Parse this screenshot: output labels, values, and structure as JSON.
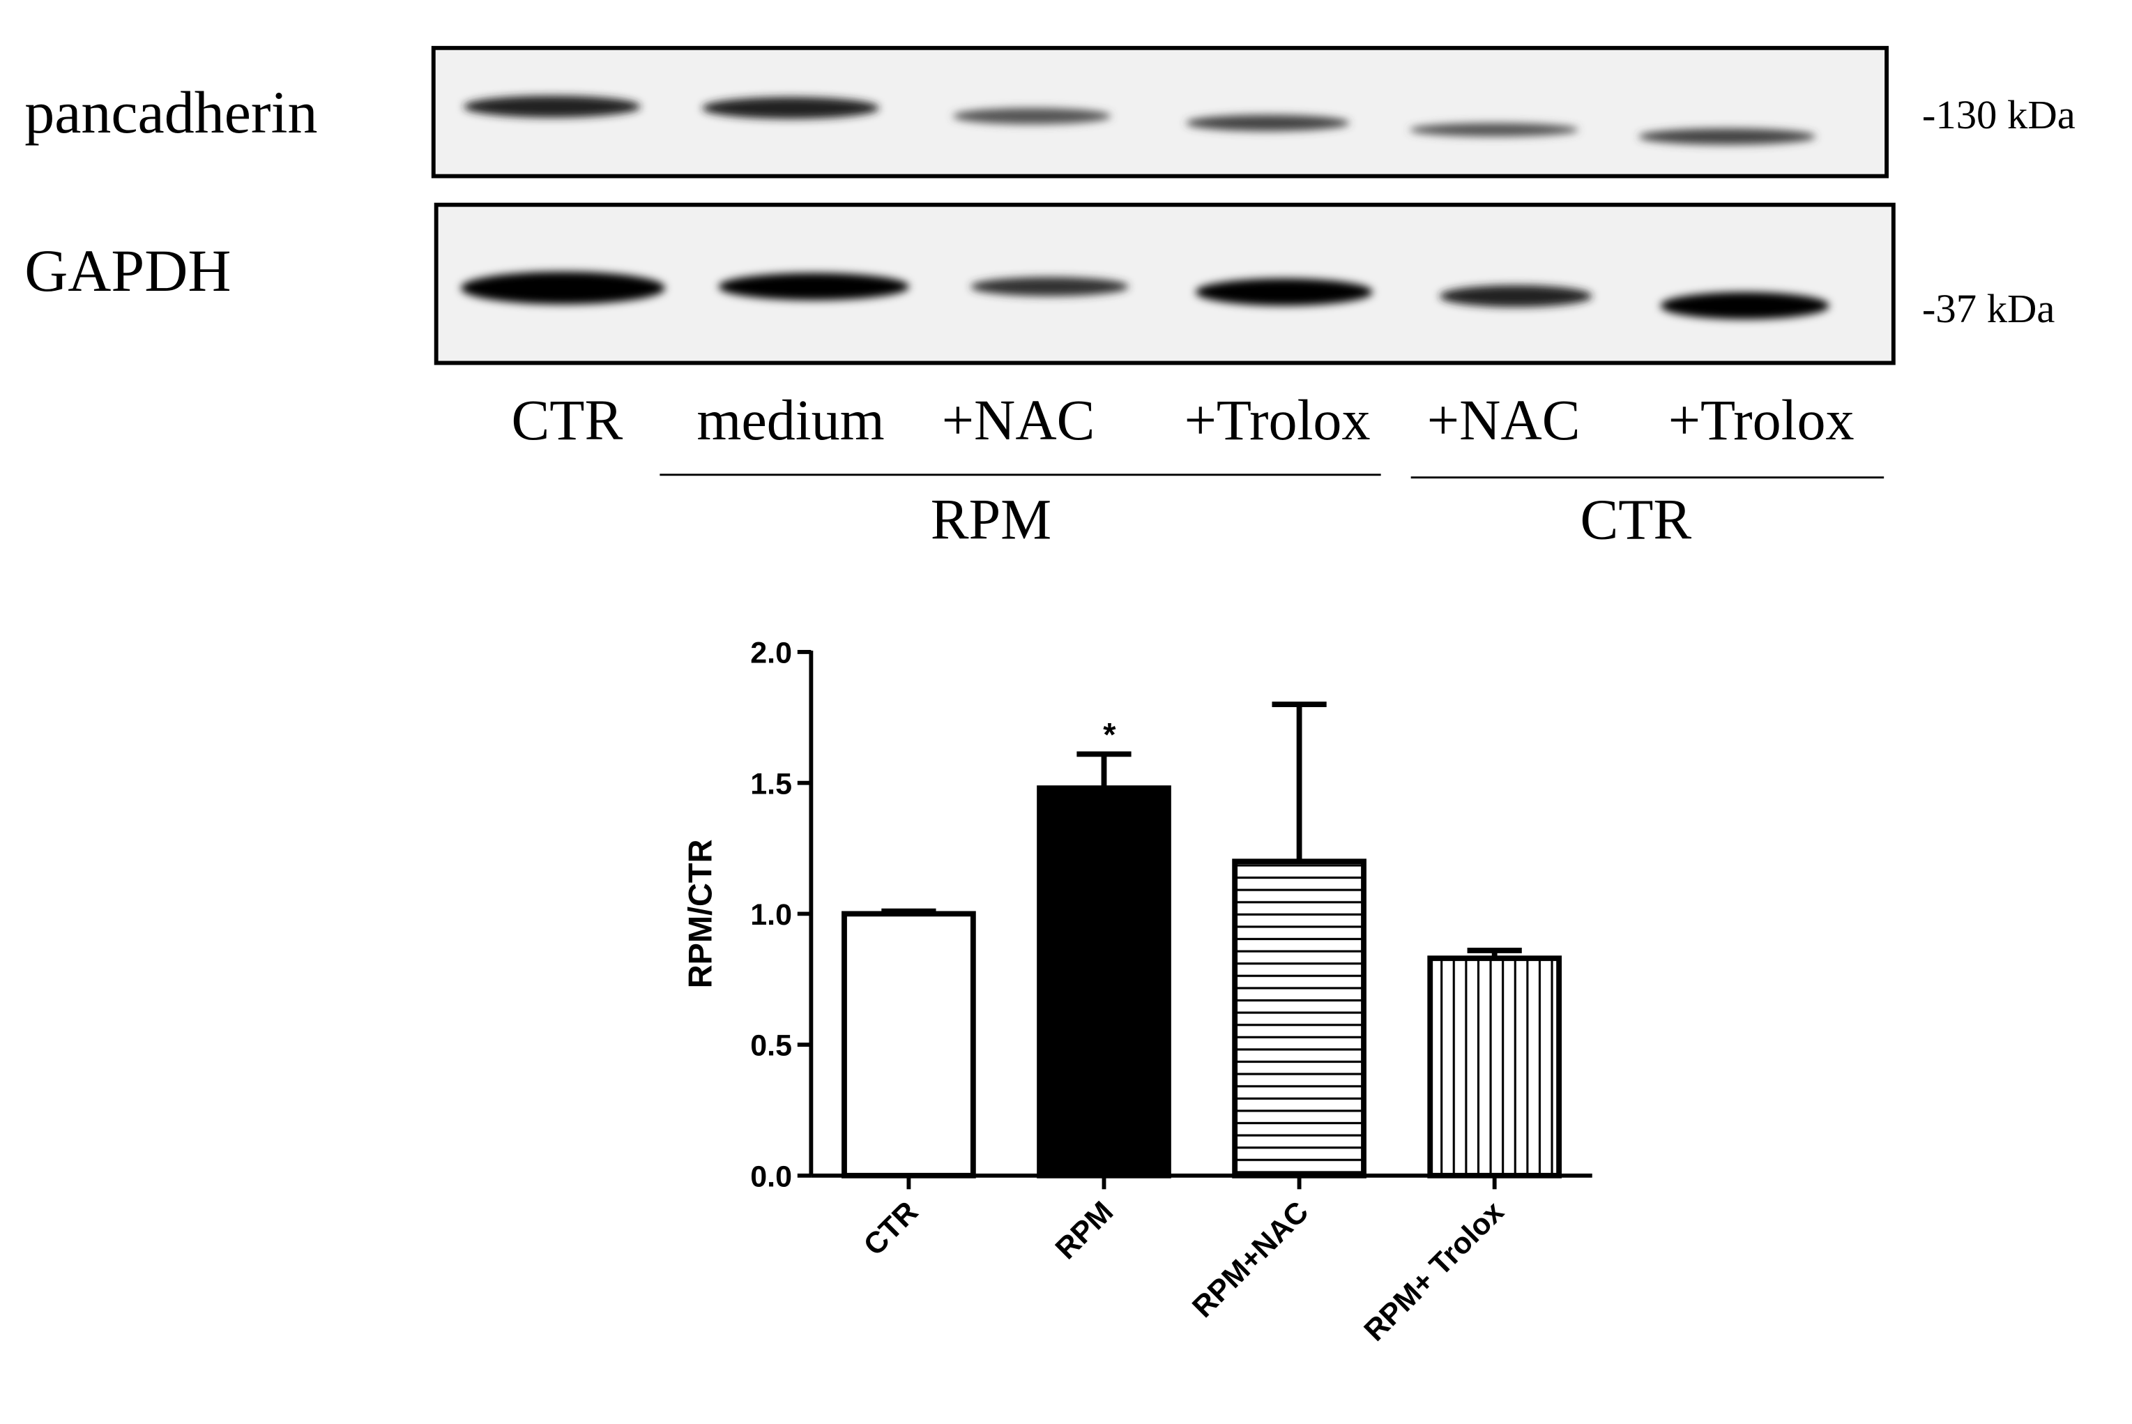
{
  "blot": {
    "rows": [
      {
        "label": "pancadherin",
        "size": "-130 kDa"
      },
      {
        "label": "GAPDH",
        "size": "-37 kDa"
      }
    ],
    "lanes": [
      "CTR",
      "medium",
      "+NAC",
      "+Trolox",
      "+NAC",
      "+Trolox"
    ],
    "groups": [
      "RPM",
      "CTR"
    ]
  },
  "chart_data": {
    "type": "bar",
    "y_label": "RPM/CTR",
    "categories": [
      "CTR",
      "RPM",
      "RPM+NAC",
      "RPM+ Trolox"
    ],
    "values": [
      1.0,
      1.48,
      1.2,
      0.83
    ],
    "errors": [
      0.01,
      0.13,
      0.6,
      0.03
    ],
    "significance": [
      null,
      "*",
      null,
      null
    ],
    "fills": [
      "white",
      "solid",
      "horizontal",
      "vertical"
    ],
    "color": "#000000",
    "ylim": [
      0,
      2
    ],
    "yticks": [
      {
        "value": 0,
        "label": "0.0"
      },
      {
        "value": 0.5,
        "label": "0.5"
      },
      {
        "value": 1,
        "label": "1.0"
      },
      {
        "value": 1.5,
        "label": "1.5"
      },
      {
        "value": 2,
        "label": "2.0"
      }
    ]
  }
}
